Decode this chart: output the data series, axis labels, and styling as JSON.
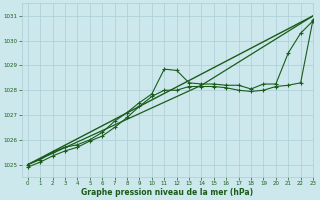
{
  "bg_color": "#cce8ec",
  "grid_color": "#aacdd4",
  "line_color": "#1a5c1a",
  "text_color": "#1a5c1a",
  "xlabel": "Graphe pression niveau de la mer (hPa)",
  "xlim": [
    -0.5,
    23
  ],
  "ylim": [
    1024.5,
    1031.5
  ],
  "yticks": [
    1025,
    1026,
    1027,
    1028,
    1029,
    1030,
    1031
  ],
  "xticks": [
    0,
    1,
    2,
    3,
    4,
    5,
    6,
    7,
    8,
    9,
    10,
    11,
    12,
    13,
    14,
    15,
    16,
    17,
    18,
    19,
    20,
    21,
    22,
    23
  ],
  "series_straight": {
    "x": [
      0,
      23
    ],
    "y": [
      1025.0,
      1031.0
    ]
  },
  "series_straight2": {
    "x": [
      0,
      14,
      23
    ],
    "y": [
      1025.0,
      1028.2,
      1031.0
    ]
  },
  "series_jagged1": {
    "x": [
      0,
      1,
      2,
      3,
      4,
      5,
      6,
      7,
      8,
      9,
      10,
      11,
      12,
      13,
      14,
      15,
      16,
      17,
      18,
      19,
      20,
      21,
      22,
      23
    ],
    "y": [
      1025.0,
      1025.2,
      1025.5,
      1025.7,
      1025.8,
      1026.0,
      1026.3,
      1026.75,
      1027.1,
      1027.5,
      1027.85,
      1028.85,
      1028.8,
      1028.3,
      1028.25,
      1028.25,
      1028.2,
      1028.2,
      1028.05,
      1028.25,
      1028.25,
      1029.5,
      1030.3,
      1030.8
    ]
  },
  "series_jagged2": {
    "x": [
      0,
      1,
      2,
      3,
      4,
      5,
      6,
      7,
      8,
      9,
      10,
      11,
      12,
      13,
      14,
      15,
      16,
      17,
      18,
      19,
      20,
      21,
      22,
      23
    ],
    "y": [
      1024.9,
      1025.1,
      1025.35,
      1025.55,
      1025.7,
      1025.95,
      1026.15,
      1026.5,
      1026.9,
      1027.35,
      1027.75,
      1028.0,
      1028.0,
      1028.15,
      1028.15,
      1028.15,
      1028.1,
      1028.0,
      1027.95,
      1028.0,
      1028.15,
      1028.2,
      1028.3,
      1030.85
    ]
  }
}
